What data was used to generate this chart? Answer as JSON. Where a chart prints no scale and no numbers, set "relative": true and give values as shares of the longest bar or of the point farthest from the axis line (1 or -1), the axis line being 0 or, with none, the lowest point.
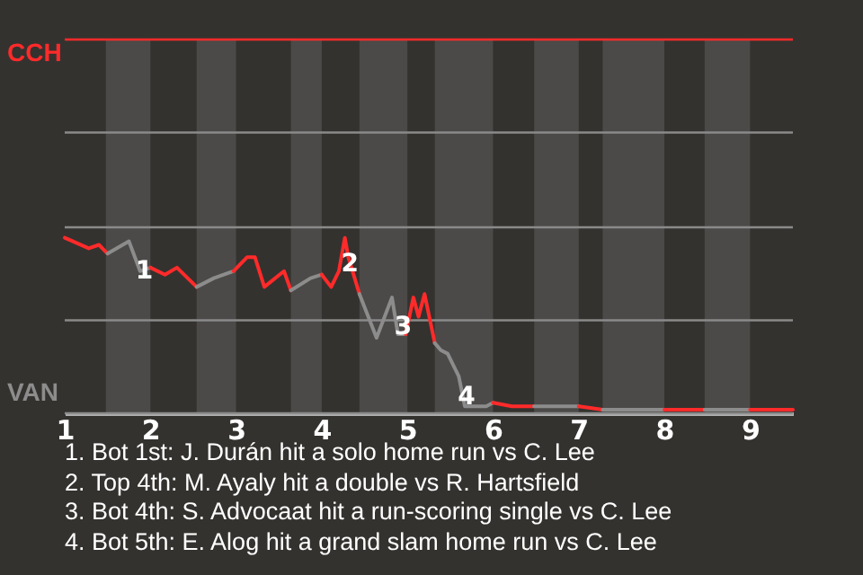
{
  "chart_data": {
    "type": "line",
    "relative": true,
    "xlim": [
      1,
      9.5
    ],
    "xticks": [
      1,
      2,
      3,
      4,
      5,
      6,
      7,
      8,
      9
    ],
    "series": [
      {
        "color": "#ff2a2a",
        "x": [
          1,
          1.28,
          1.4,
          1.5
        ],
        "values": [
          1,
          0.94,
          0.96,
          0.91
        ]
      },
      {
        "color": "#8c8c8c",
        "x": [
          1.5,
          1.75,
          1.88,
          2
        ],
        "values": [
          0.91,
          0.98,
          0.81,
          0.83
        ]
      },
      {
        "color": "#ff2a2a",
        "x": [
          2,
          2.17,
          2.31,
          2.54
        ],
        "values": [
          0.83,
          0.79,
          0.83,
          0.72
        ]
      },
      {
        "color": "#8c8c8c",
        "x": [
          2.54,
          2.74,
          2.97
        ],
        "values": [
          0.72,
          0.77,
          0.81
        ]
      },
      {
        "color": "#ff2a2a",
        "x": [
          2.97,
          3.13,
          3.22,
          3.33,
          3.56,
          3.64
        ],
        "values": [
          0.81,
          0.89,
          0.89,
          0.72,
          0.81,
          0.7
        ]
      },
      {
        "color": "#8c8c8c",
        "x": [
          3.64,
          3.87,
          4
        ],
        "values": [
          0.7,
          0.77,
          0.79
        ]
      },
      {
        "color": "#ff2a2a",
        "x": [
          4,
          4.11,
          4.2,
          4.27,
          4.31,
          4.44
        ],
        "values": [
          0.79,
          0.72,
          0.81,
          1,
          0.89,
          0.68
        ]
      },
      {
        "color": "#8c8c8c",
        "x": [
          4.44,
          4.64,
          4.82,
          4.89,
          4.98
        ],
        "values": [
          0.68,
          0.43,
          0.66,
          0.45,
          0.45
        ]
      },
      {
        "color": "#ff2a2a",
        "x": [
          4.98,
          5.07,
          5.13,
          5.2,
          5.32
        ],
        "values": [
          0.45,
          0.66,
          0.55,
          0.68,
          0.4
        ]
      },
      {
        "color": "#8c8c8c",
        "x": [
          5.32,
          5.39,
          5.47,
          5.6,
          5.67,
          5.92,
          6
        ],
        "values": [
          0.4,
          0.36,
          0.34,
          0.21,
          0.04,
          0.04,
          0.06
        ]
      },
      {
        "color": "#ff2a2a",
        "x": [
          6,
          6.22,
          6.32,
          6.48
        ],
        "values": [
          0.06,
          0.04,
          0.04,
          0.04
        ]
      },
      {
        "color": "#8c8c8c",
        "x": [
          6.48,
          7
        ],
        "values": [
          0.04,
          0.04
        ]
      },
      {
        "color": "#ff2a2a",
        "x": [
          7,
          7.28
        ],
        "values": [
          0.04,
          0.02
        ]
      },
      {
        "color": "#8c8c8c",
        "x": [
          7.28,
          8
        ],
        "values": [
          0.02,
          0.02
        ]
      },
      {
        "color": "#ff2a2a",
        "x": [
          8,
          8.47
        ],
        "values": [
          0.02,
          0.02
        ]
      },
      {
        "color": "#8c8c8c",
        "x": [
          8.47,
          9
        ],
        "values": [
          0.02,
          0.02
        ]
      },
      {
        "color": "#ff2a2a",
        "x": [
          9,
          9.5
        ],
        "values": [
          0.02,
          0.02
        ]
      }
    ],
    "ref_lines": [
      {
        "axis": "y",
        "value": 2.13,
        "label": "CCH",
        "color": "#ff2a2a"
      },
      {
        "axis": "y",
        "value": 1.6,
        "label": null,
        "color": "#8a8a8a"
      },
      {
        "axis": "y",
        "value": 1.06,
        "label": null,
        "color": "#8a8a8a"
      },
      {
        "axis": "y",
        "value": 0.53,
        "label": null,
        "color": "#8a8a8a"
      },
      {
        "axis": "y",
        "value": 0,
        "label": "VAN",
        "color": "#8c8c8c"
      }
    ],
    "bands": [
      {
        "axis": "x",
        "from": 1.48,
        "to": 2,
        "label": null,
        "color": "#4b4a48"
      },
      {
        "axis": "x",
        "from": 2.54,
        "to": 3,
        "label": null,
        "color": "#4b4a48"
      },
      {
        "axis": "x",
        "from": 3.64,
        "to": 4,
        "label": null,
        "color": "#4b4a48"
      },
      {
        "axis": "x",
        "from": 4.44,
        "to": 5,
        "label": null,
        "color": "#4b4a48"
      },
      {
        "axis": "x",
        "from": 5.32,
        "to": 6,
        "label": null,
        "color": "#4b4a48"
      },
      {
        "axis": "x",
        "from": 6.48,
        "to": 7,
        "label": null,
        "color": "#4b4a48"
      },
      {
        "axis": "x",
        "from": 7.28,
        "to": 8,
        "label": null,
        "color": "#4b4a48"
      },
      {
        "axis": "x",
        "from": 8.47,
        "to": 9,
        "label": null,
        "color": "#4b4a48"
      }
    ],
    "annotations": [
      {
        "text": "1",
        "x": 1.93,
        "y": 0.81
      },
      {
        "text": "2",
        "x": 4.33,
        "y": 0.85
      },
      {
        "text": "3",
        "x": 4.95,
        "y": 0.49
      },
      {
        "text": "4",
        "x": 5.69,
        "y": 0.09
      },
      "1. Bot 1st: J. Durán hit a solo home run vs C. Lee",
      "2. Top 4th: M. Ayaly hit a double vs R. Hartsfield",
      "3. Bot 4th: S. Advocaat hit a run-scoring single vs C. Lee",
      "4. Bot 5th: E. Alog hit a grand slam home run vs C. Lee"
    ]
  }
}
